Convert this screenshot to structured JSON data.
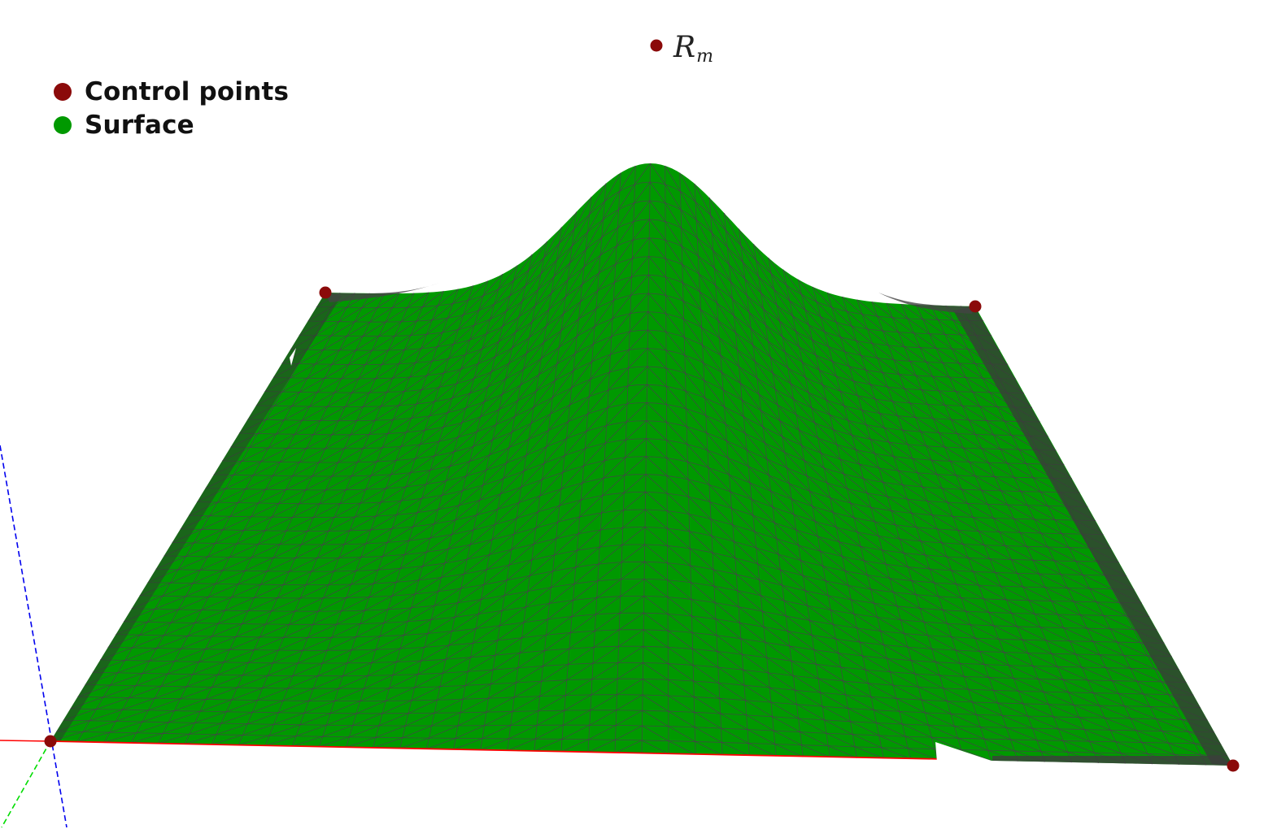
{
  "legend": {
    "items": [
      {
        "label": "Control points",
        "color": "#8b0a0a"
      },
      {
        "label": "Surface",
        "color": "#009900"
      }
    ]
  },
  "apex_label": {
    "symbol": "R",
    "subscript": "m"
  },
  "colors": {
    "control_point": "#8b0a0a",
    "surface": "#009900",
    "mesh_line": "#4d3a52",
    "edge_shade": "#3d3d3d",
    "axis_x": "#ff0000",
    "axis_y": "#00dd00",
    "axis_z": "#0000ee"
  },
  "surface": {
    "type": "bezier-surface-mesh",
    "mesh_columns": 44,
    "mesh_rows": 34
  }
}
